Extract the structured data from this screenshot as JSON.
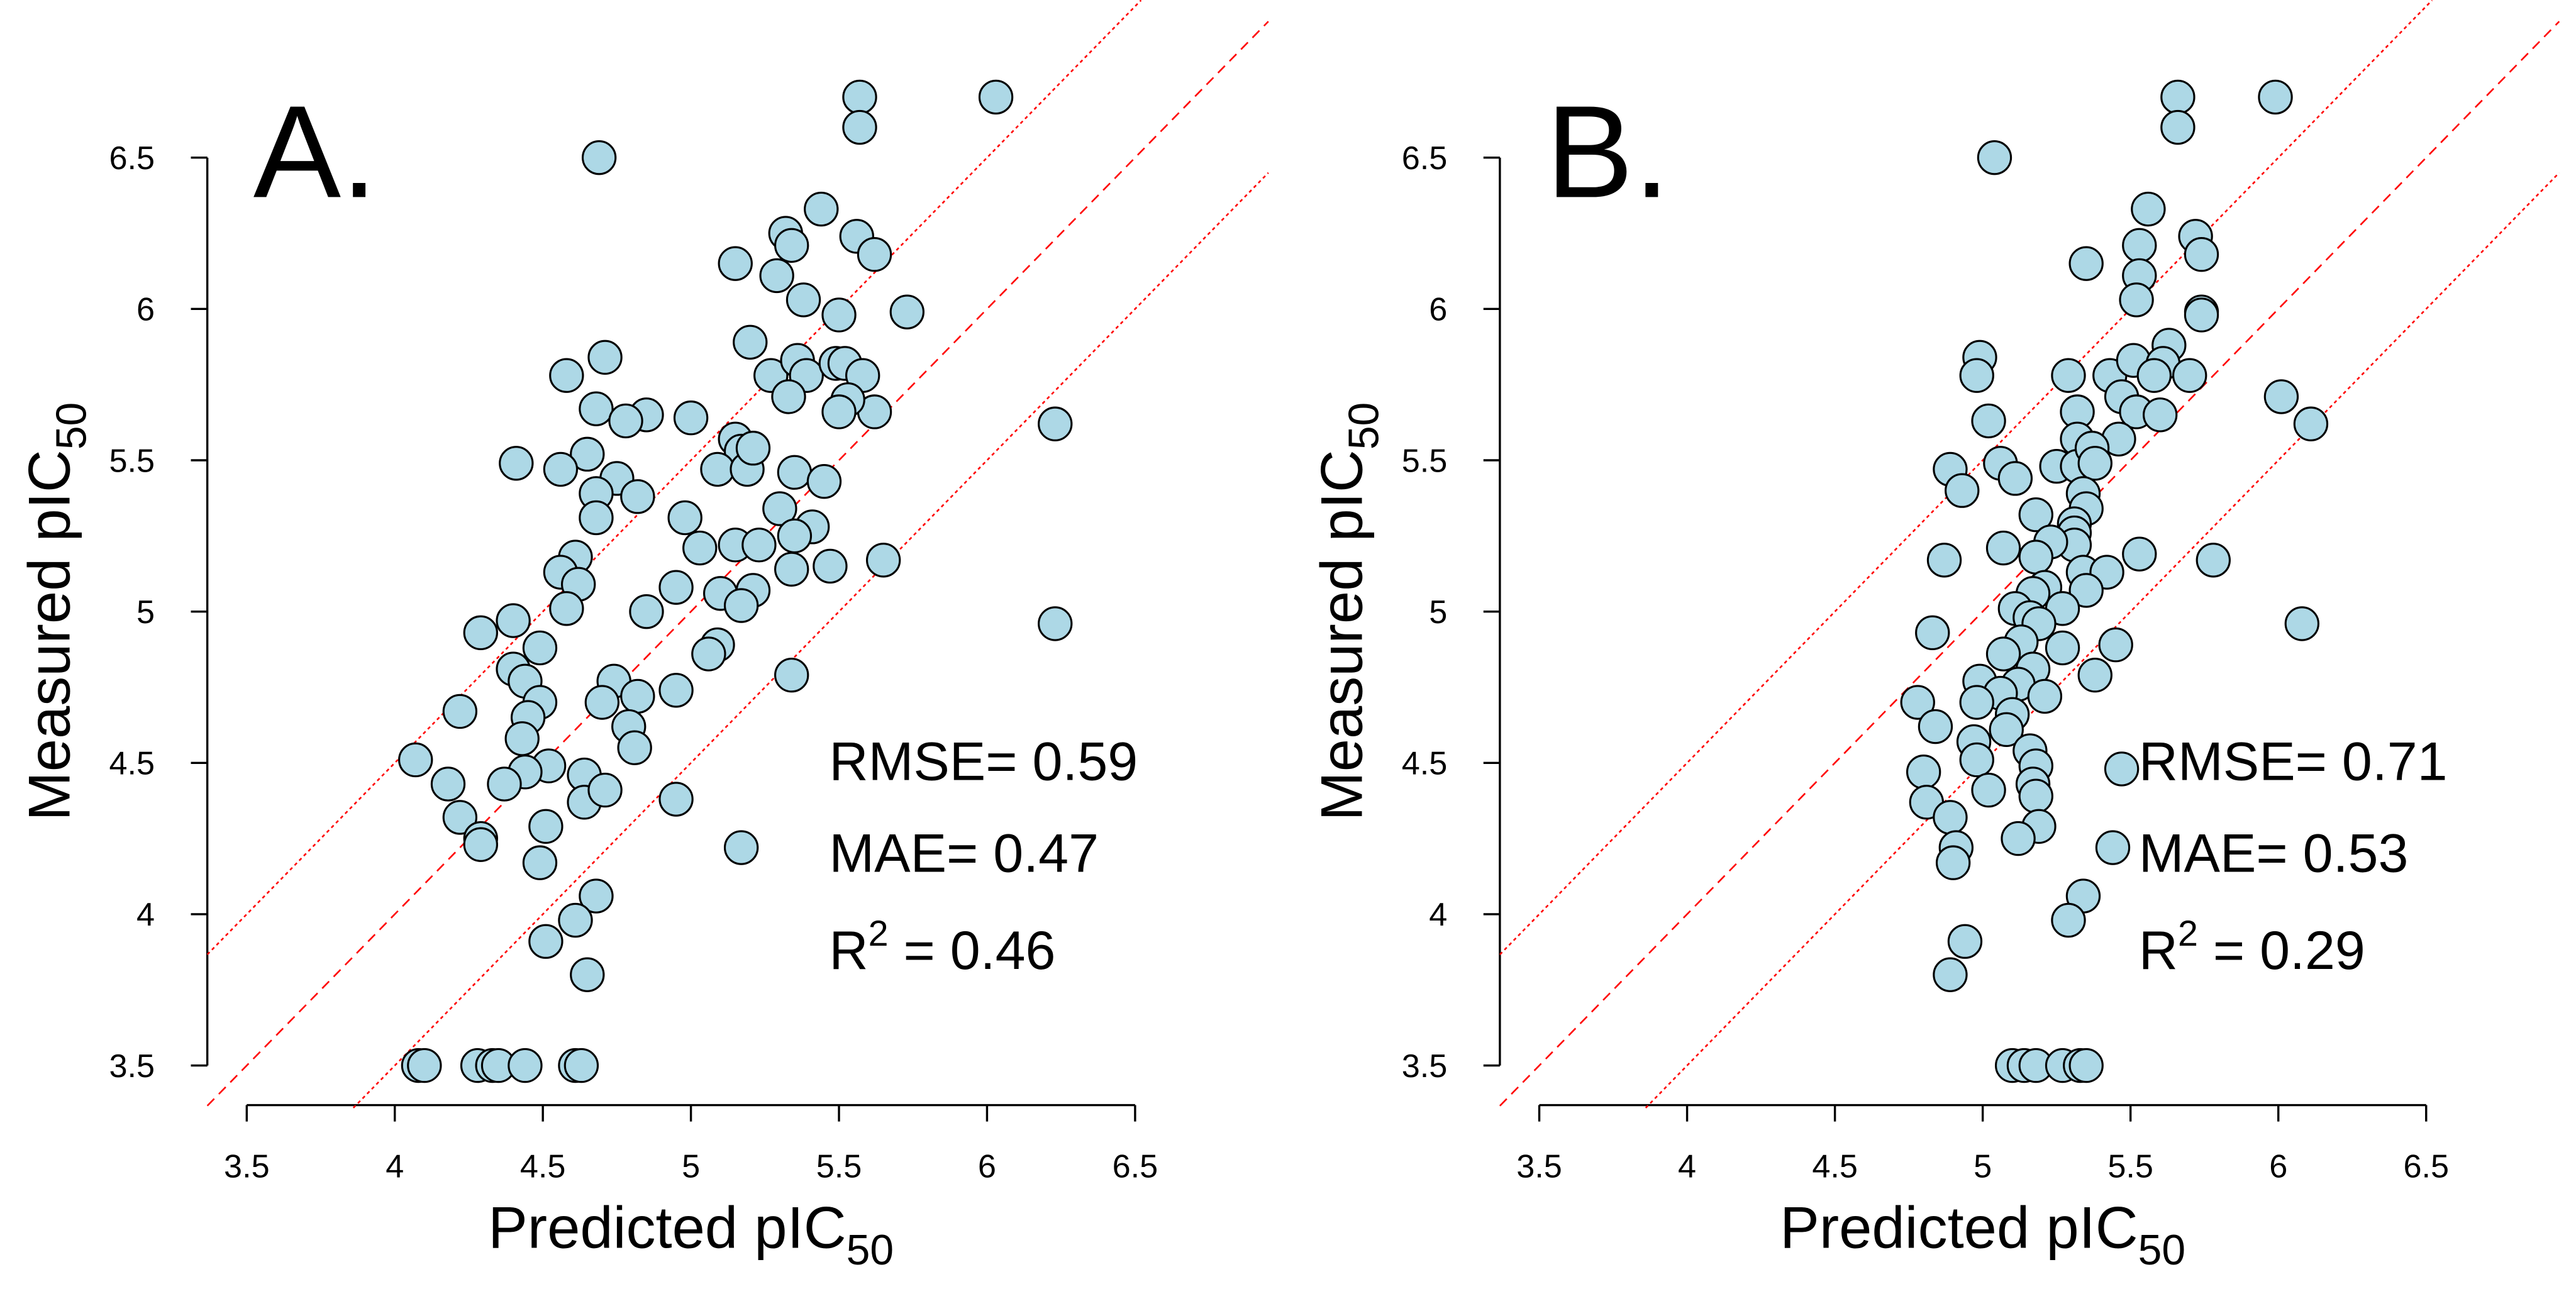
{
  "chart_data": [
    {
      "type": "scatter",
      "panel_label": "A.",
      "xlabel": "Predicted pIC",
      "xlabel_sub": "50",
      "ylabel": "Measured pIC",
      "ylabel_sub": "50",
      "xlim": [
        3.5,
        6.5
      ],
      "ylim": [
        3.5,
        6.5
      ],
      "xticks": [
        "3.5",
        "4",
        "4.5",
        "5",
        "5.5",
        "6",
        "6.5"
      ],
      "yticks": [
        "3.5",
        "4",
        "4.5",
        "5",
        "5.5",
        "6",
        "6.5"
      ],
      "stats": {
        "rmse": "RMSE= 0.59",
        "mae": "MAE= 0.47",
        "r2_prefix": "R",
        "r2_sup": "2",
        "r2_value": " = 0.46"
      },
      "reference_lines": [
        {
          "slope": 1,
          "offset": 0,
          "style": "dashed"
        },
        {
          "slope": 1,
          "offset": 0.5,
          "style": "dotted"
        },
        {
          "slope": 1,
          "offset": -0.5,
          "style": "dotted"
        }
      ],
      "points": [
        [
          6.03,
          6.7
        ],
        [
          5.57,
          6.7
        ],
        [
          5.57,
          6.6
        ],
        [
          4.69,
          6.5
        ],
        [
          5.44,
          6.33
        ],
        [
          5.32,
          6.25
        ],
        [
          5.34,
          6.21
        ],
        [
          5.56,
          6.24
        ],
        [
          5.62,
          6.18
        ],
        [
          5.15,
          6.15
        ],
        [
          5.29,
          6.11
        ],
        [
          5.38,
          6.03
        ],
        [
          5.73,
          5.99
        ],
        [
          5.5,
          5.98
        ],
        [
          5.2,
          5.89
        ],
        [
          4.71,
          5.84
        ],
        [
          4.58,
          5.78
        ],
        [
          5.27,
          5.78
        ],
        [
          5.36,
          5.83
        ],
        [
          5.39,
          5.78
        ],
        [
          5.49,
          5.82
        ],
        [
          5.52,
          5.82
        ],
        [
          5.58,
          5.78
        ],
        [
          5.62,
          5.66
        ],
        [
          4.68,
          5.67
        ],
        [
          4.85,
          5.65
        ],
        [
          5.0,
          5.64
        ],
        [
          4.78,
          5.63
        ],
        [
          5.33,
          5.71
        ],
        [
          5.53,
          5.7
        ],
        [
          5.5,
          5.66
        ],
        [
          5.15,
          5.57
        ],
        [
          5.17,
          5.53
        ],
        [
          6.23,
          5.62
        ],
        [
          4.65,
          5.52
        ],
        [
          4.56,
          5.47
        ],
        [
          4.41,
          5.49
        ],
        [
          5.09,
          5.47
        ],
        [
          5.19,
          5.47
        ],
        [
          5.21,
          5.54
        ],
        [
          5.35,
          5.46
        ],
        [
          4.75,
          5.44
        ],
        [
          4.68,
          5.39
        ],
        [
          4.82,
          5.38
        ],
        [
          5.45,
          5.43
        ],
        [
          5.3,
          5.34
        ],
        [
          4.68,
          5.31
        ],
        [
          4.98,
          5.31
        ],
        [
          5.41,
          5.28
        ],
        [
          5.35,
          5.25
        ],
        [
          5.03,
          5.21
        ],
        [
          5.15,
          5.22
        ],
        [
          5.23,
          5.22
        ],
        [
          4.61,
          5.18
        ],
        [
          4.56,
          5.13
        ],
        [
          4.62,
          5.09
        ],
        [
          5.34,
          5.14
        ],
        [
          5.47,
          5.15
        ],
        [
          5.65,
          5.17
        ],
        [
          4.95,
          5.08
        ],
        [
          5.21,
          5.07
        ],
        [
          5.1,
          5.06
        ],
        [
          4.58,
          5.01
        ],
        [
          5.17,
          5.02
        ],
        [
          4.85,
          5.0
        ],
        [
          4.4,
          4.97
        ],
        [
          4.29,
          4.93
        ],
        [
          6.23,
          4.96
        ],
        [
          5.09,
          4.89
        ],
        [
          5.06,
          4.86
        ],
        [
          4.49,
          4.88
        ],
        [
          4.4,
          4.81
        ],
        [
          4.44,
          4.77
        ],
        [
          4.74,
          4.77
        ],
        [
          5.34,
          4.79
        ],
        [
          4.95,
          4.74
        ],
        [
          4.82,
          4.72
        ],
        [
          4.7,
          4.7
        ],
        [
          4.49,
          4.7
        ],
        [
          4.45,
          4.65
        ],
        [
          4.79,
          4.62
        ],
        [
          4.81,
          4.55
        ],
        [
          4.43,
          4.58
        ],
        [
          4.07,
          4.51
        ],
        [
          4.22,
          4.67
        ],
        [
          4.52,
          4.49
        ],
        [
          4.44,
          4.47
        ],
        [
          4.64,
          4.46
        ],
        [
          4.18,
          4.43
        ],
        [
          4.37,
          4.43
        ],
        [
          4.64,
          4.37
        ],
        [
          4.71,
          4.41
        ],
        [
          4.95,
          4.38
        ],
        [
          4.22,
          4.32
        ],
        [
          4.29,
          4.25
        ],
        [
          4.29,
          4.23
        ],
        [
          4.51,
          4.29
        ],
        [
          5.17,
          4.22
        ],
        [
          4.49,
          4.17
        ],
        [
          4.68,
          4.06
        ],
        [
          4.61,
          3.98
        ],
        [
          4.51,
          3.91
        ],
        [
          4.65,
          3.8
        ],
        [
          4.08,
          3.5
        ],
        [
          4.1,
          3.5
        ],
        [
          4.28,
          3.5
        ],
        [
          4.33,
          3.5
        ],
        [
          4.35,
          3.5
        ],
        [
          4.44,
          3.5
        ],
        [
          4.61,
          3.5
        ],
        [
          4.63,
          3.5
        ]
      ]
    },
    {
      "type": "scatter",
      "panel_label": "B.",
      "xlabel": "Predicted pIC",
      "xlabel_sub": "50",
      "ylabel": "Measured pIC",
      "ylabel_sub": "50",
      "xlim": [
        3.5,
        6.5
      ],
      "ylim": [
        3.5,
        6.5
      ],
      "xticks": [
        "3.5",
        "4",
        "4.5",
        "5",
        "5.5",
        "6",
        "6.5"
      ],
      "yticks": [
        "3.5",
        "4",
        "4.5",
        "5",
        "5.5",
        "6",
        "6.5"
      ],
      "stats": {
        "rmse": "RMSE= 0.71",
        "mae": "MAE= 0.53",
        "r2_prefix": "R",
        "r2_sup": "2",
        "r2_value": " = 0.29"
      },
      "reference_lines": [
        {
          "slope": 1,
          "offset": 0,
          "style": "dashed"
        },
        {
          "slope": 1,
          "offset": 0.5,
          "style": "dotted"
        },
        {
          "slope": 1,
          "offset": -0.5,
          "style": "dotted"
        }
      ],
      "points": [
        [
          5.66,
          6.7
        ],
        [
          5.66,
          6.6
        ],
        [
          5.99,
          6.7
        ],
        [
          5.04,
          6.5
        ],
        [
          5.56,
          6.33
        ],
        [
          5.72,
          6.24
        ],
        [
          5.74,
          6.18
        ],
        [
          5.53,
          6.21
        ],
        [
          5.35,
          6.15
        ],
        [
          5.53,
          6.11
        ],
        [
          5.52,
          6.03
        ],
        [
          5.74,
          5.99
        ],
        [
          5.74,
          5.98
        ],
        [
          5.63,
          5.88
        ],
        [
          4.99,
          5.84
        ],
        [
          4.98,
          5.78
        ],
        [
          5.29,
          5.78
        ],
        [
          5.43,
          5.78
        ],
        [
          5.51,
          5.83
        ],
        [
          5.61,
          5.82
        ],
        [
          5.58,
          5.78
        ],
        [
          5.7,
          5.78
        ],
        [
          5.47,
          5.71
        ],
        [
          6.01,
          5.71
        ],
        [
          5.32,
          5.66
        ],
        [
          5.52,
          5.66
        ],
        [
          5.6,
          5.65
        ],
        [
          5.02,
          5.63
        ],
        [
          5.32,
          5.57
        ],
        [
          5.46,
          5.57
        ],
        [
          6.11,
          5.62
        ],
        [
          4.89,
          5.47
        ],
        [
          5.06,
          5.49
        ],
        [
          5.25,
          5.48
        ],
        [
          5.32,
          5.48
        ],
        [
          5.37,
          5.54
        ],
        [
          5.38,
          5.49
        ],
        [
          4.93,
          5.4
        ],
        [
          5.11,
          5.44
        ],
        [
          5.34,
          5.39
        ],
        [
          5.35,
          5.34
        ],
        [
          5.18,
          5.32
        ],
        [
          5.31,
          5.29
        ],
        [
          5.31,
          5.26
        ],
        [
          5.31,
          5.22
        ],
        [
          5.07,
          5.21
        ],
        [
          5.23,
          5.23
        ],
        [
          5.18,
          5.18
        ],
        [
          5.53,
          5.19
        ],
        [
          5.78,
          5.17
        ],
        [
          4.87,
          5.17
        ],
        [
          5.34,
          5.13
        ],
        [
          5.42,
          5.13
        ],
        [
          5.21,
          5.08
        ],
        [
          5.17,
          5.06
        ],
        [
          5.35,
          5.07
        ],
        [
          5.11,
          5.01
        ],
        [
          5.16,
          4.98
        ],
        [
          5.27,
          5.01
        ],
        [
          4.83,
          4.93
        ],
        [
          5.19,
          4.96
        ],
        [
          6.08,
          4.96
        ],
        [
          5.13,
          4.9
        ],
        [
          5.27,
          4.88
        ],
        [
          5.45,
          4.89
        ],
        [
          5.07,
          4.86
        ],
        [
          5.17,
          4.81
        ],
        [
          5.38,
          4.79
        ],
        [
          4.99,
          4.77
        ],
        [
          5.12,
          4.76
        ],
        [
          5.06,
          4.73
        ],
        [
          5.21,
          4.72
        ],
        [
          4.78,
          4.7
        ],
        [
          4.98,
          4.7
        ],
        [
          5.1,
          4.66
        ],
        [
          4.84,
          4.62
        ],
        [
          5.08,
          4.61
        ],
        [
          4.97,
          4.57
        ],
        [
          5.16,
          4.54
        ],
        [
          4.98,
          4.51
        ],
        [
          4.8,
          4.47
        ],
        [
          5.18,
          4.49
        ],
        [
          5.47,
          4.48
        ],
        [
          5.17,
          4.43
        ],
        [
          5.02,
          4.41
        ],
        [
          4.81,
          4.37
        ],
        [
          5.18,
          4.39
        ],
        [
          4.89,
          4.32
        ],
        [
          5.19,
          4.29
        ],
        [
          5.12,
          4.25
        ],
        [
          4.91,
          4.22
        ],
        [
          5.44,
          4.22
        ],
        [
          4.9,
          4.17
        ],
        [
          5.34,
          4.06
        ],
        [
          5.29,
          3.98
        ],
        [
          4.94,
          3.91
        ],
        [
          4.89,
          3.8
        ],
        [
          5.1,
          3.5
        ],
        [
          5.14,
          3.5
        ],
        [
          5.18,
          3.5
        ],
        [
          5.27,
          3.5
        ],
        [
          5.33,
          3.5
        ],
        [
          5.35,
          3.5
        ]
      ]
    }
  ],
  "colors": {
    "point_fill": "#ADD8E6",
    "reference_line": "#FF0000"
  }
}
